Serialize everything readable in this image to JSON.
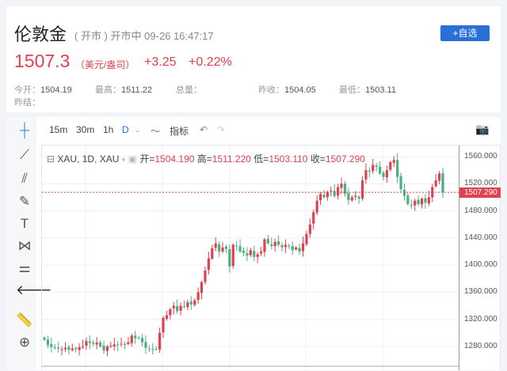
{
  "header": {
    "title": "伦敦金",
    "status_paren": "( 开市 )",
    "status": "开市中",
    "datetime": "09-26 16:47:17",
    "add_watch": "+自选"
  },
  "quote": {
    "price": "1507.3",
    "unit": "（美元/盎司）",
    "change": "+3.25",
    "change_pct": "+0.22%"
  },
  "stats": [
    {
      "label": "今开：",
      "value": "1504.19"
    },
    {
      "label": "最高：",
      "value": "1511.22"
    },
    {
      "label": "总量：",
      "value": ""
    },
    {
      "label": "昨收：",
      "value": "1504.05"
    },
    {
      "label": "最低：",
      "value": "1503.11"
    },
    {
      "label": "昨结：",
      "value": ""
    }
  ],
  "toolbar": {
    "intervals": [
      "15m",
      "30m",
      "1h",
      "D"
    ],
    "indicators": "指标"
  },
  "legend": {
    "symbol": "XAU, 1D, XAU",
    "open_label": "开=",
    "open": "1504.190",
    "high_label": "高=",
    "high": "1511.220",
    "low_label": "低=",
    "low": "1503.110",
    "close_label": "收=",
    "close": "1507.290"
  },
  "colors": {
    "up": "#e0404f",
    "down": "#4caf84",
    "accent": "#2a6fd8"
  },
  "chart_data": {
    "type": "candlestick",
    "ylim": [
      1260,
      1570
    ],
    "yticks": [
      "1560.000",
      "1520.000",
      "1480.000",
      "1440.000",
      "1400.000",
      "1360.000",
      "1320.000",
      "1280.000"
    ],
    "last_price": "1507.290",
    "closes": [
      1290,
      1282,
      1279,
      1278,
      1277,
      1276,
      1278,
      1275,
      1277,
      1276,
      1279,
      1280,
      1288,
      1285,
      1284,
      1286,
      1280,
      1274,
      1280,
      1281,
      1283,
      1282,
      1284,
      1283,
      1286,
      1296,
      1292,
      1293,
      1286,
      1278,
      1276,
      1275,
      1276,
      1300,
      1322,
      1326,
      1335,
      1340,
      1332,
      1340,
      1338,
      1345,
      1342,
      1348,
      1360,
      1375,
      1392,
      1410,
      1425,
      1432,
      1420,
      1426,
      1424,
      1398,
      1430,
      1428,
      1420,
      1418,
      1414,
      1422,
      1412,
      1416,
      1420,
      1438,
      1432,
      1428,
      1434,
      1430,
      1426,
      1430,
      1428,
      1422,
      1426,
      1420,
      1432,
      1446,
      1460,
      1478,
      1495,
      1505,
      1500,
      1508,
      1510,
      1502,
      1515,
      1520,
      1505,
      1496,
      1500,
      1502,
      1498,
      1525,
      1540,
      1538,
      1548,
      1545,
      1535,
      1530,
      1540,
      1552,
      1555,
      1530,
      1512,
      1502,
      1490,
      1488,
      1495,
      1490,
      1498,
      1492,
      1500,
      1515,
      1525,
      1535,
      1507
    ]
  }
}
